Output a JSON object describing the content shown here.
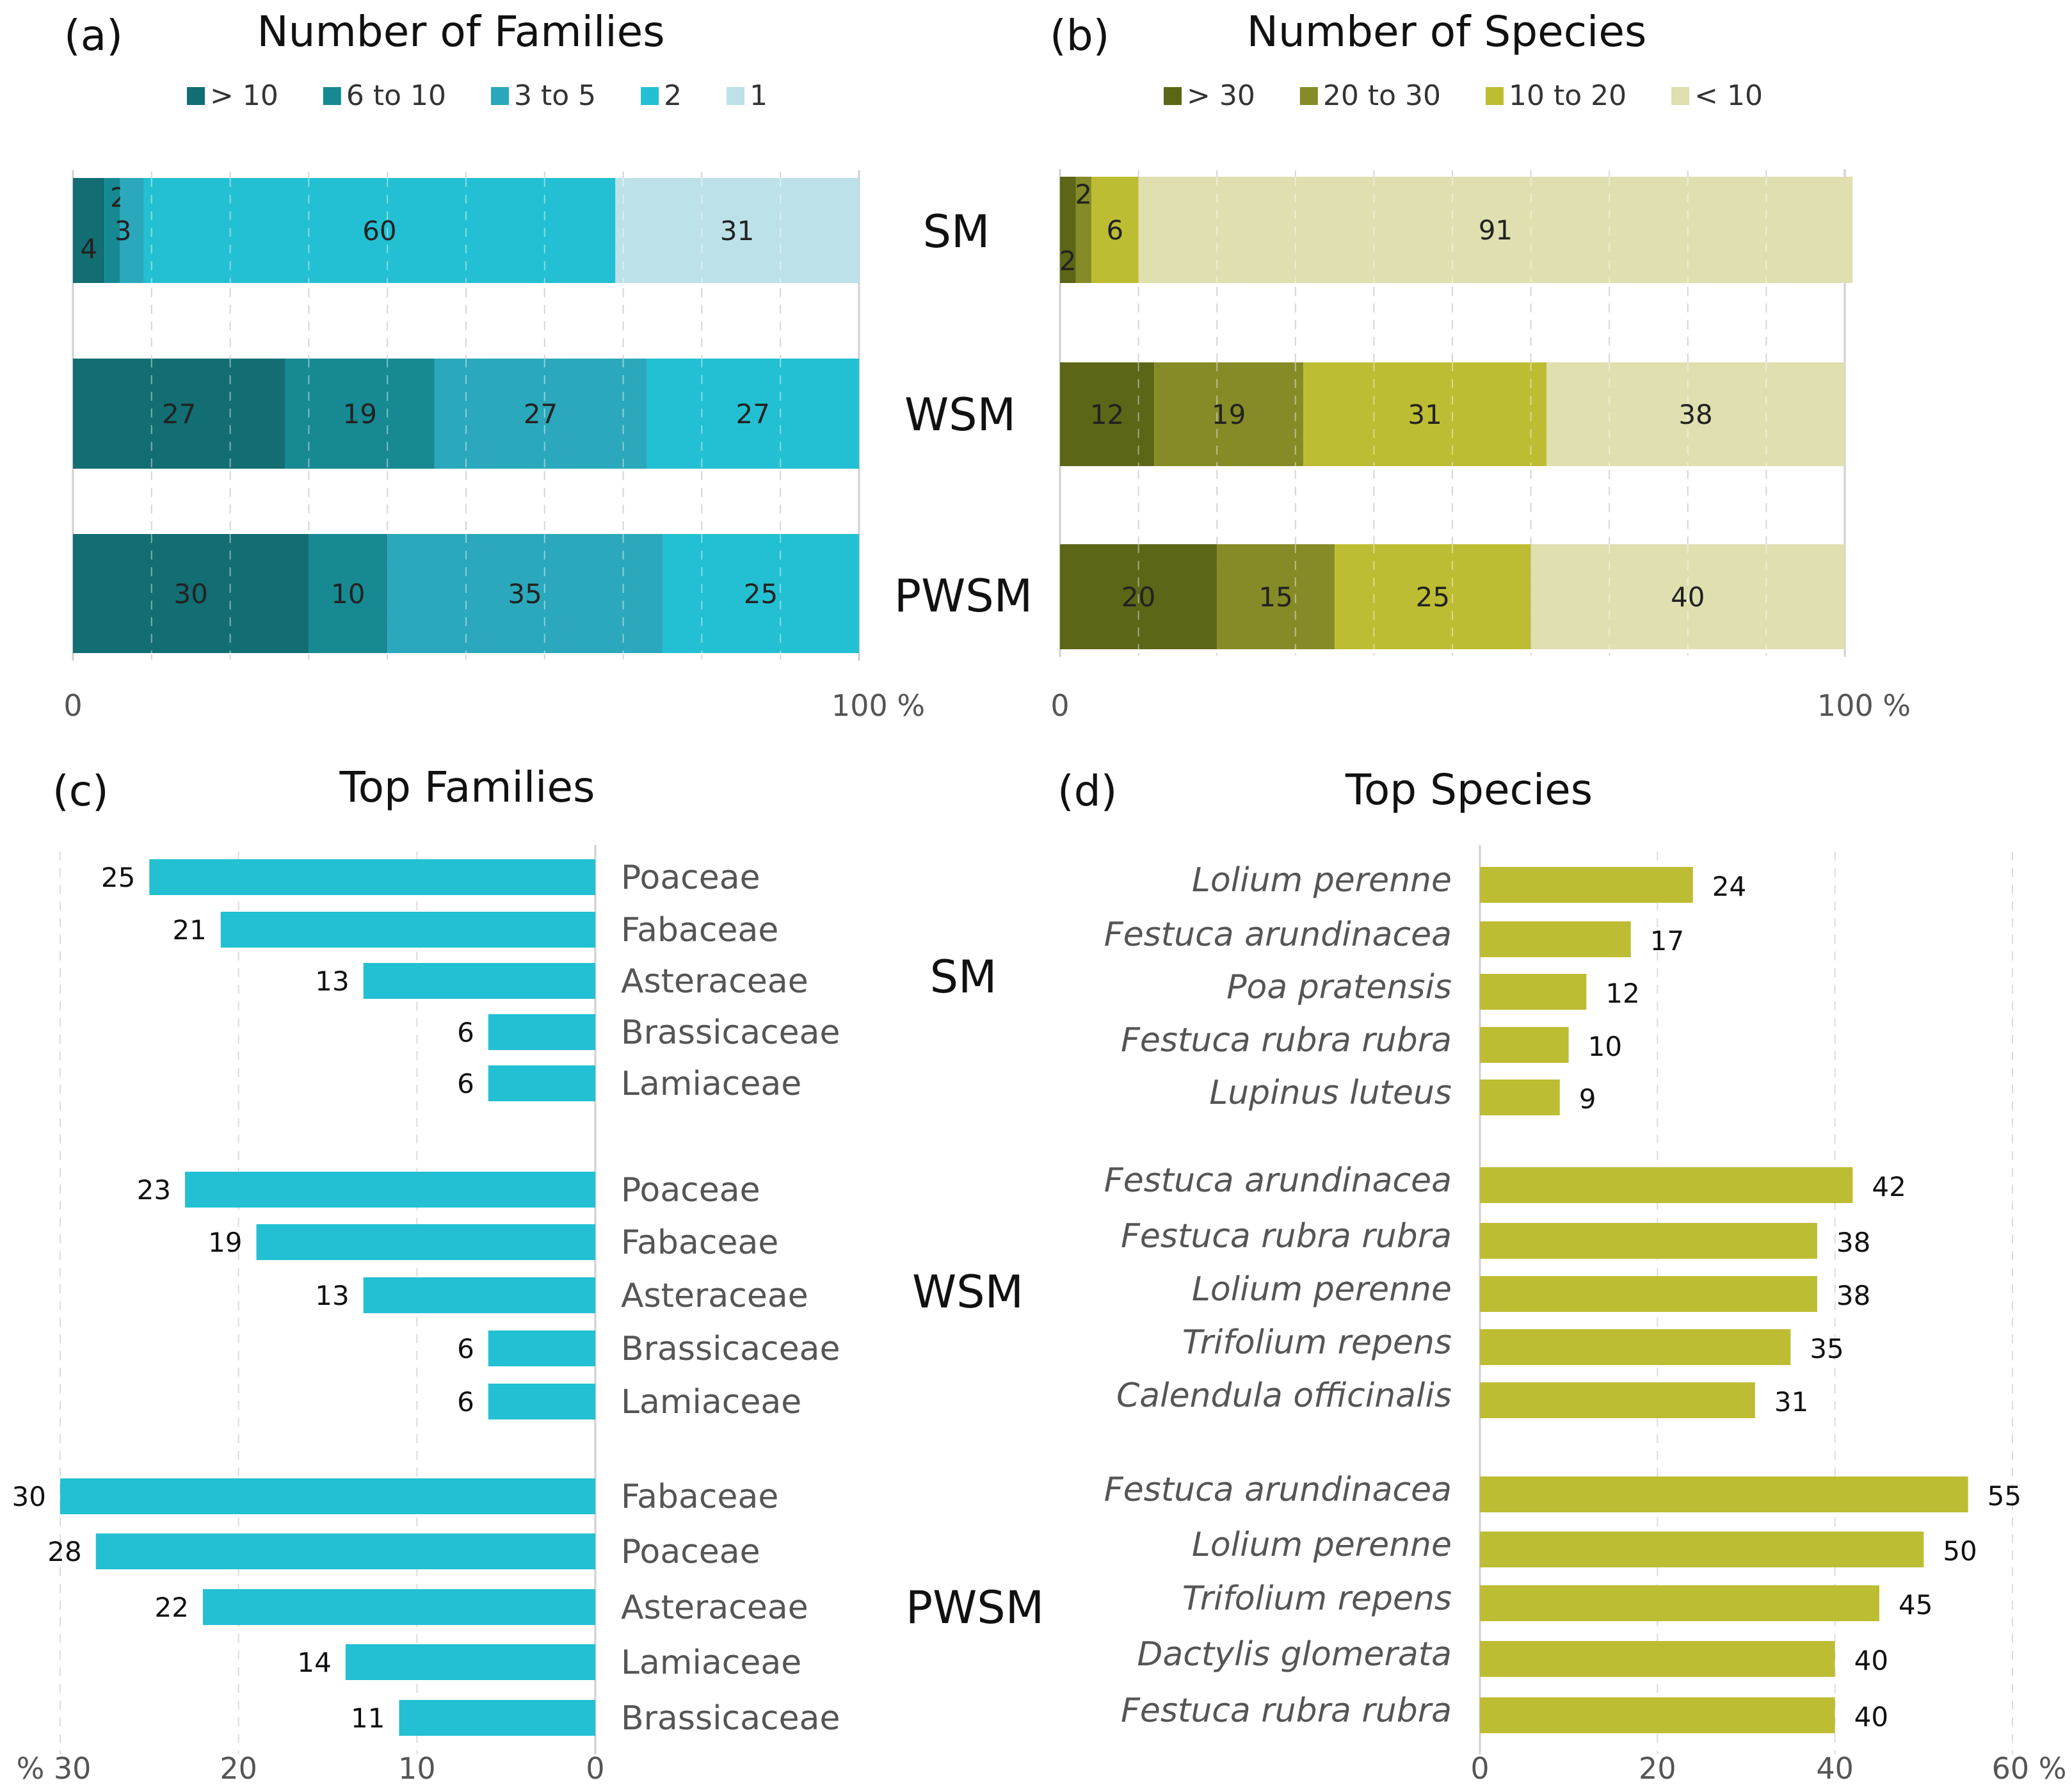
{
  "chart_data": [
    {
      "panel": "(a)",
      "type": "bar",
      "orientation": "horizontal-stacked-percent",
      "title": "Number of Families",
      "categories": [
        "SM",
        "WSM",
        "PWSM"
      ],
      "series": [
        {
          "name": "> 10",
          "color": "#126e73",
          "values": [
            4,
            27,
            30
          ]
        },
        {
          "name": "6 to 10",
          "color": "#178993",
          "values": [
            2,
            19,
            10
          ]
        },
        {
          "name": "3 to 5",
          "color": "#2ba8bb",
          "values": [
            3,
            27,
            35
          ]
        },
        {
          "name": "2",
          "color": "#22c0d2",
          "values": [
            60,
            27,
            25
          ]
        },
        {
          "name": "1",
          "color": "#bde1e8",
          "values": [
            31,
            0,
            0
          ]
        }
      ],
      "xlim": [
        0,
        100
      ],
      "x_ticks": [
        "0",
        "100 %"
      ]
    },
    {
      "panel": "(b)",
      "type": "bar",
      "orientation": "horizontal-stacked-percent",
      "title": "Number of Species",
      "categories": [
        "SM",
        "WSM",
        "PWSM"
      ],
      "series": [
        {
          "name": "> 30",
          "color": "#5d6516",
          "values": [
            2,
            12,
            20
          ]
        },
        {
          "name": "20 to 30",
          "color": "#858b26",
          "values": [
            2,
            19,
            15
          ]
        },
        {
          "name": "10 to 20",
          "color": "#bdbd33",
          "values": [
            6,
            31,
            25
          ]
        },
        {
          "name": "< 10",
          "color": "#dfdfb0",
          "values": [
            91,
            38,
            40
          ]
        }
      ],
      "xlim": [
        0,
        100
      ],
      "x_ticks": [
        "0",
        "100 %"
      ]
    },
    {
      "panel": "(c)",
      "type": "bar",
      "orientation": "horizontal-reversed",
      "title": "Top Families",
      "color": "#22c0d2",
      "groups": [
        {
          "site": "SM",
          "labels": [
            "Poaceae",
            "Fabaceae",
            "Asteraceae",
            "Brassicaceae",
            "Lamiaceae"
          ],
          "values": [
            25,
            21,
            13,
            6,
            6
          ]
        },
        {
          "site": "WSM",
          "labels": [
            "Poaceae",
            "Fabaceae",
            "Asteraceae",
            "Brassicaceae",
            "Lamiaceae"
          ],
          "values": [
            23,
            19,
            13,
            6,
            6
          ]
        },
        {
          "site": "PWSM",
          "labels": [
            "Fabaceae",
            "Poaceae",
            "Asteraceae",
            "Lamiaceae",
            "Brassicaceae"
          ],
          "values": [
            30,
            28,
            22,
            14,
            11
          ]
        }
      ],
      "xlim": [
        0,
        30
      ],
      "x_ticks": [
        "% 30",
        "20",
        "10",
        "0"
      ]
    },
    {
      "panel": "(d)",
      "type": "bar",
      "orientation": "horizontal",
      "title": "Top Species",
      "color": "#bdbd33",
      "groups": [
        {
          "site": "SM",
          "labels": [
            "Lolium perenne",
            "Festuca arundinacea",
            "Poa pratensis",
            "Festuca rubra rubra",
            "Lupinus luteus"
          ],
          "values": [
            24,
            17,
            12,
            10,
            9
          ]
        },
        {
          "site": "WSM",
          "labels": [
            "Festuca arundinacea",
            "Festuca rubra rubra",
            "Lolium perenne",
            "Trifolium repens",
            "Calendula officinalis"
          ],
          "values": [
            42,
            38,
            38,
            35,
            31
          ]
        },
        {
          "site": "PWSM",
          "labels": [
            "Festuca arundinacea",
            "Lolium perenne",
            "Trifolium repens",
            "Dactylis glomerata",
            "Festuca rubra rubra"
          ],
          "values": [
            55,
            50,
            45,
            40,
            40
          ]
        }
      ],
      "xlim": [
        0,
        60
      ],
      "x_ticks": [
        "0",
        "20",
        "40",
        "60 %"
      ]
    }
  ]
}
